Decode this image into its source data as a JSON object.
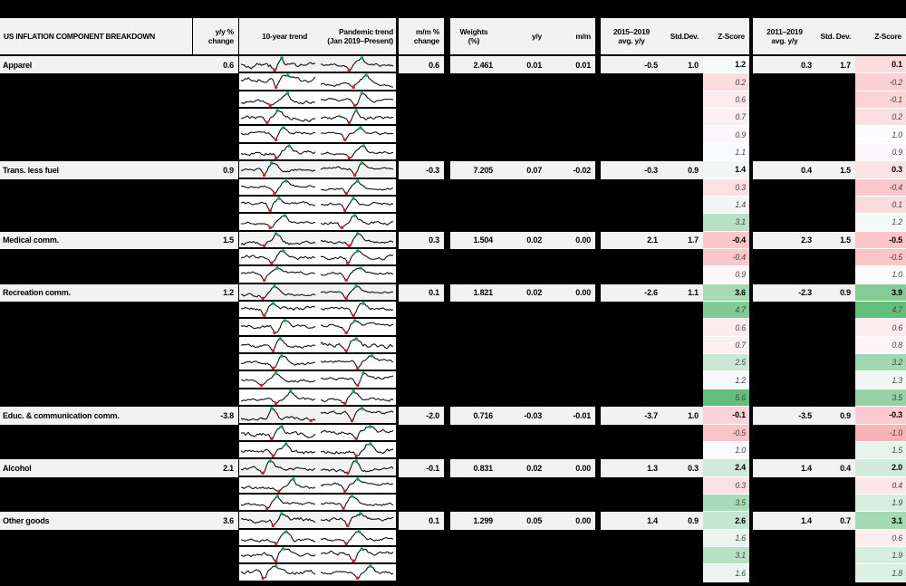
{
  "header": {
    "title": "US INFLATION COMPONENT BREAKDOWN",
    "yy_change": [
      "y/y %",
      "change"
    ],
    "ten_year_trend": "10-year trend",
    "pandemic_trend": [
      "Pandemic trend",
      "(Jan 2019–Present)"
    ],
    "mm_change": [
      "m/m %",
      "change"
    ],
    "weights": [
      "Weights",
      "(%)"
    ],
    "yy": "y/y",
    "mm": "m/m",
    "period1": [
      "2015–2019",
      "avg. y/y"
    ],
    "stddev1": "Std.Dev.",
    "zscore1": "Z-Score",
    "period2": [
      "2011–2019",
      "avg. y/y"
    ],
    "stddev2": "Std. Dev.",
    "zscore2": "Z-Score"
  },
  "colors": {
    "background": "#000000",
    "row_bg": "#f2f2f2",
    "subrow_spark_bg": "#ffffff",
    "scale_negative": "#F8696B",
    "scale_midpoint": "#FCFCFF",
    "scale_positive": "#63BE7B",
    "spark_line": "#111111",
    "spark_min_marker": "#e02026",
    "spark_max_marker": "#00a35c",
    "subrow_text": "#454545"
  },
  "zscore_scale": {
    "col1": {
      "min": -3.0,
      "mid": 1.05,
      "max": 5.6
    },
    "col2": {
      "min": -3.0,
      "mid": 1.0,
      "max": 4.7
    }
  },
  "table": {
    "rows": [
      {
        "t": "m",
        "label": "Apparel",
        "yy": "0.6",
        "mm": "0.6",
        "w": "2.461",
        "yyc": "0.01",
        "mmc": "0.01",
        "a1": "-0.5",
        "s1": "1.0",
        "z1": 1.2,
        "a2": "0.3",
        "s2": "1.7",
        "z2": 0.1
      },
      {
        "t": "s",
        "z1": 0.2,
        "z2": -0.2
      },
      {
        "t": "s",
        "z1": 0.6,
        "z2": -0.1
      },
      {
        "t": "s",
        "z1": 0.7,
        "z2": 0.2
      },
      {
        "t": "s",
        "z1": 0.9,
        "z2": 1.0
      },
      {
        "t": "s",
        "z1": 1.1,
        "z2": 0.9
      },
      {
        "t": "m",
        "label": "Trans. less fuel",
        "yy": "0.9",
        "mm": "-0.3",
        "w": "7.205",
        "yyc": "0.07",
        "mmc": "-0.02",
        "a1": "-0.3",
        "s1": "0.9",
        "z1": 1.4,
        "a2": "0.4",
        "s2": "1.5",
        "z2": 0.3
      },
      {
        "t": "s",
        "z1": 0.3,
        "z2": -0.4
      },
      {
        "t": "s",
        "z1": 1.4,
        "z2": 0.1
      },
      {
        "t": "s",
        "z1": 3.1,
        "z2": 1.2
      },
      {
        "t": "m",
        "label": "Medical comm.",
        "yy": "1.5",
        "mm": "0.3",
        "w": "1.504",
        "yyc": "0.02",
        "mmc": "0.00",
        "a1": "2.1",
        "s1": "1.7",
        "z1": -0.4,
        "a2": "2.3",
        "s2": "1.5",
        "z2": -0.5
      },
      {
        "t": "s",
        "z1": -0.4,
        "z2": -0.5
      },
      {
        "t": "s",
        "z1": 0.9,
        "z2": 1.0
      },
      {
        "t": "m",
        "label": "Recreation comm.",
        "yy": "1.2",
        "mm": "0.1",
        "w": "1.821",
        "yyc": "0.02",
        "mmc": "0.00",
        "a1": "-2.6",
        "s1": "1.1",
        "z1": 3.6,
        "a2": "-2.3",
        "s2": "0.9",
        "z2": 3.9
      },
      {
        "t": "s",
        "z1": 4.7,
        "z2": 4.7
      },
      {
        "t": "s",
        "z1": 0.6,
        "z2": 0.6
      },
      {
        "t": "s",
        "z1": 0.7,
        "z2": 0.8
      },
      {
        "t": "s",
        "z1": 2.5,
        "z2": 3.2
      },
      {
        "t": "s",
        "z1": 1.2,
        "z2": 1.3
      },
      {
        "t": "s",
        "z1": 5.6,
        "z2": 3.5
      },
      {
        "t": "m",
        "label": "Educ. & communication comm.",
        "yy": "-3.8",
        "mm": "-2.0",
        "w": "0.716",
        "yyc": "-0.03",
        "mmc": "-0.01",
        "a1": "-3.7",
        "s1": "1.0",
        "z1": -0.1,
        "a2": "-3.5",
        "s2": "0.9",
        "z2": -0.3
      },
      {
        "t": "s",
        "z1": -0.5,
        "z2": -1.0
      },
      {
        "t": "s",
        "z1": 1.0,
        "z2": 1.5
      },
      {
        "t": "m",
        "label": "Alcohol",
        "yy": "2.1",
        "mm": "-0.1",
        "w": "0.831",
        "yyc": "0.02",
        "mmc": "0.00",
        "a1": "1.3",
        "s1": "0.3",
        "z1": 2.4,
        "a2": "1.4",
        "s2": "0.4",
        "z2": 2.0
      },
      {
        "t": "s",
        "z1": 0.3,
        "z2": 0.4
      },
      {
        "t": "s",
        "z1": 3.5,
        "z2": 1.9
      },
      {
        "t": "m",
        "label": "Other goods",
        "yy": "3.6",
        "mm": "0.1",
        "w": "1.299",
        "yyc": "0.05",
        "mmc": "0.00",
        "a1": "1.4",
        "s1": "0.9",
        "z1": 2.6,
        "a2": "1.4",
        "s2": "0.7",
        "z2": 3.1
      },
      {
        "t": "s",
        "z1": 1.6,
        "z2": 0.6
      },
      {
        "t": "s",
        "z1": 3.1,
        "z2": 1.9
      },
      {
        "t": "s",
        "z1": 1.6,
        "z2": 1.8
      }
    ]
  }
}
